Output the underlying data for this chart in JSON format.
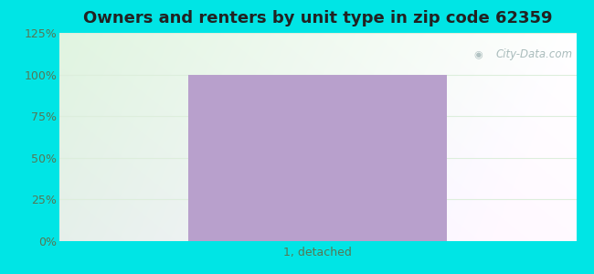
{
  "title": "Owners and renters by unit type in zip code 62359",
  "categories": [
    "1, detached"
  ],
  "values": [
    100
  ],
  "bar_color": "#b8a0cc",
  "ylim": [
    0,
    125
  ],
  "yticks": [
    0,
    25,
    50,
    75,
    100,
    125
  ],
  "ytick_labels": [
    "0%",
    "25%",
    "50%",
    "75%",
    "100%",
    "125%"
  ],
  "outer_bg_color": "#00e5e5",
  "title_fontsize": 13,
  "tick_label_fontsize": 9,
  "watermark_text": "City-Data.com",
  "watermark_color": "#aabcbc",
  "bar_width": 0.5,
  "grid_color": "#ddeedc",
  "tick_color": "#557755"
}
